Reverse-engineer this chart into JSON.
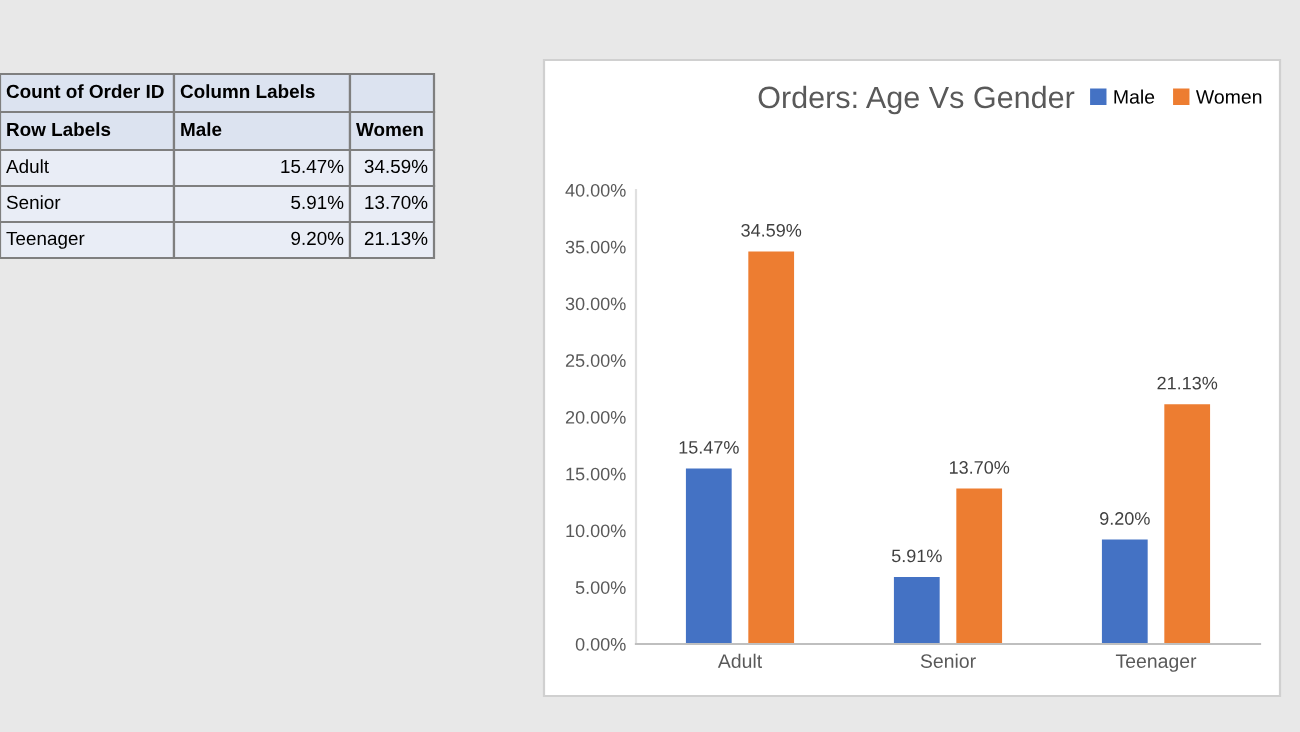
{
  "chart_data": {
    "type": "bar",
    "title": "Orders: Age Vs Gender",
    "categories": [
      "Adult",
      "Senior",
      "Teenager"
    ],
    "series": [
      {
        "name": "Male",
        "color": "#4472c4",
        "values": [
          15.47,
          5.91,
          9.2
        ],
        "value_labels": [
          "15.47%",
          "5.91%",
          "9.20%"
        ]
      },
      {
        "name": "Women",
        "color": "#ed7d31",
        "values": [
          34.59,
          13.7,
          21.13
        ],
        "value_labels": [
          "34.59%",
          "13.70%",
          "21.13%"
        ]
      }
    ],
    "ylim": [
      0,
      40
    ],
    "yticks": [
      {
        "value": 0,
        "label": "0.00%"
      },
      {
        "value": 5,
        "label": "5.00%"
      },
      {
        "value": 10,
        "label": "10.00%"
      },
      {
        "value": 15,
        "label": "15.00%"
      },
      {
        "value": 20,
        "label": "20.00%"
      },
      {
        "value": 25,
        "label": "25.00%"
      },
      {
        "value": 30,
        "label": "30.00%"
      },
      {
        "value": 35,
        "label": "35.00%"
      },
      {
        "value": 40,
        "label": "40.00%"
      }
    ],
    "grid": false,
    "legend": "top right",
    "annotations": [
      "Count of Order ID",
      "Column Labels",
      "Row Labels"
    ]
  }
}
